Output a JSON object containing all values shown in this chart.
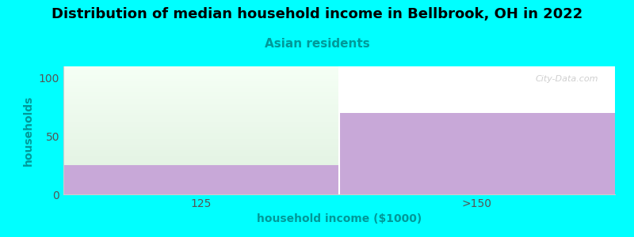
{
  "title": "Distribution of median household income in Bellbrook, OH in 2022",
  "subtitle": "Asian residents",
  "xlabel": "household income ($1000)",
  "ylabel": "households",
  "categories": [
    "125",
    ">150"
  ],
  "purple_values": [
    25,
    70
  ],
  "ylim": [
    0,
    110
  ],
  "yticks": [
    0,
    50,
    100
  ],
  "bar_color_purple": "#c8a8d8",
  "background_color": "#00ffff",
  "watermark": "City-Data.com",
  "title_fontsize": 13,
  "subtitle_fontsize": 11,
  "subtitle_color": "#009999",
  "ylabel_color": "#009999",
  "xlabel_color": "#009999",
  "tick_color": "#555555",
  "plot_bg_color": "#ffffff",
  "green_top_color": "#f5fff5",
  "green_bottom_color": "#dff0df"
}
